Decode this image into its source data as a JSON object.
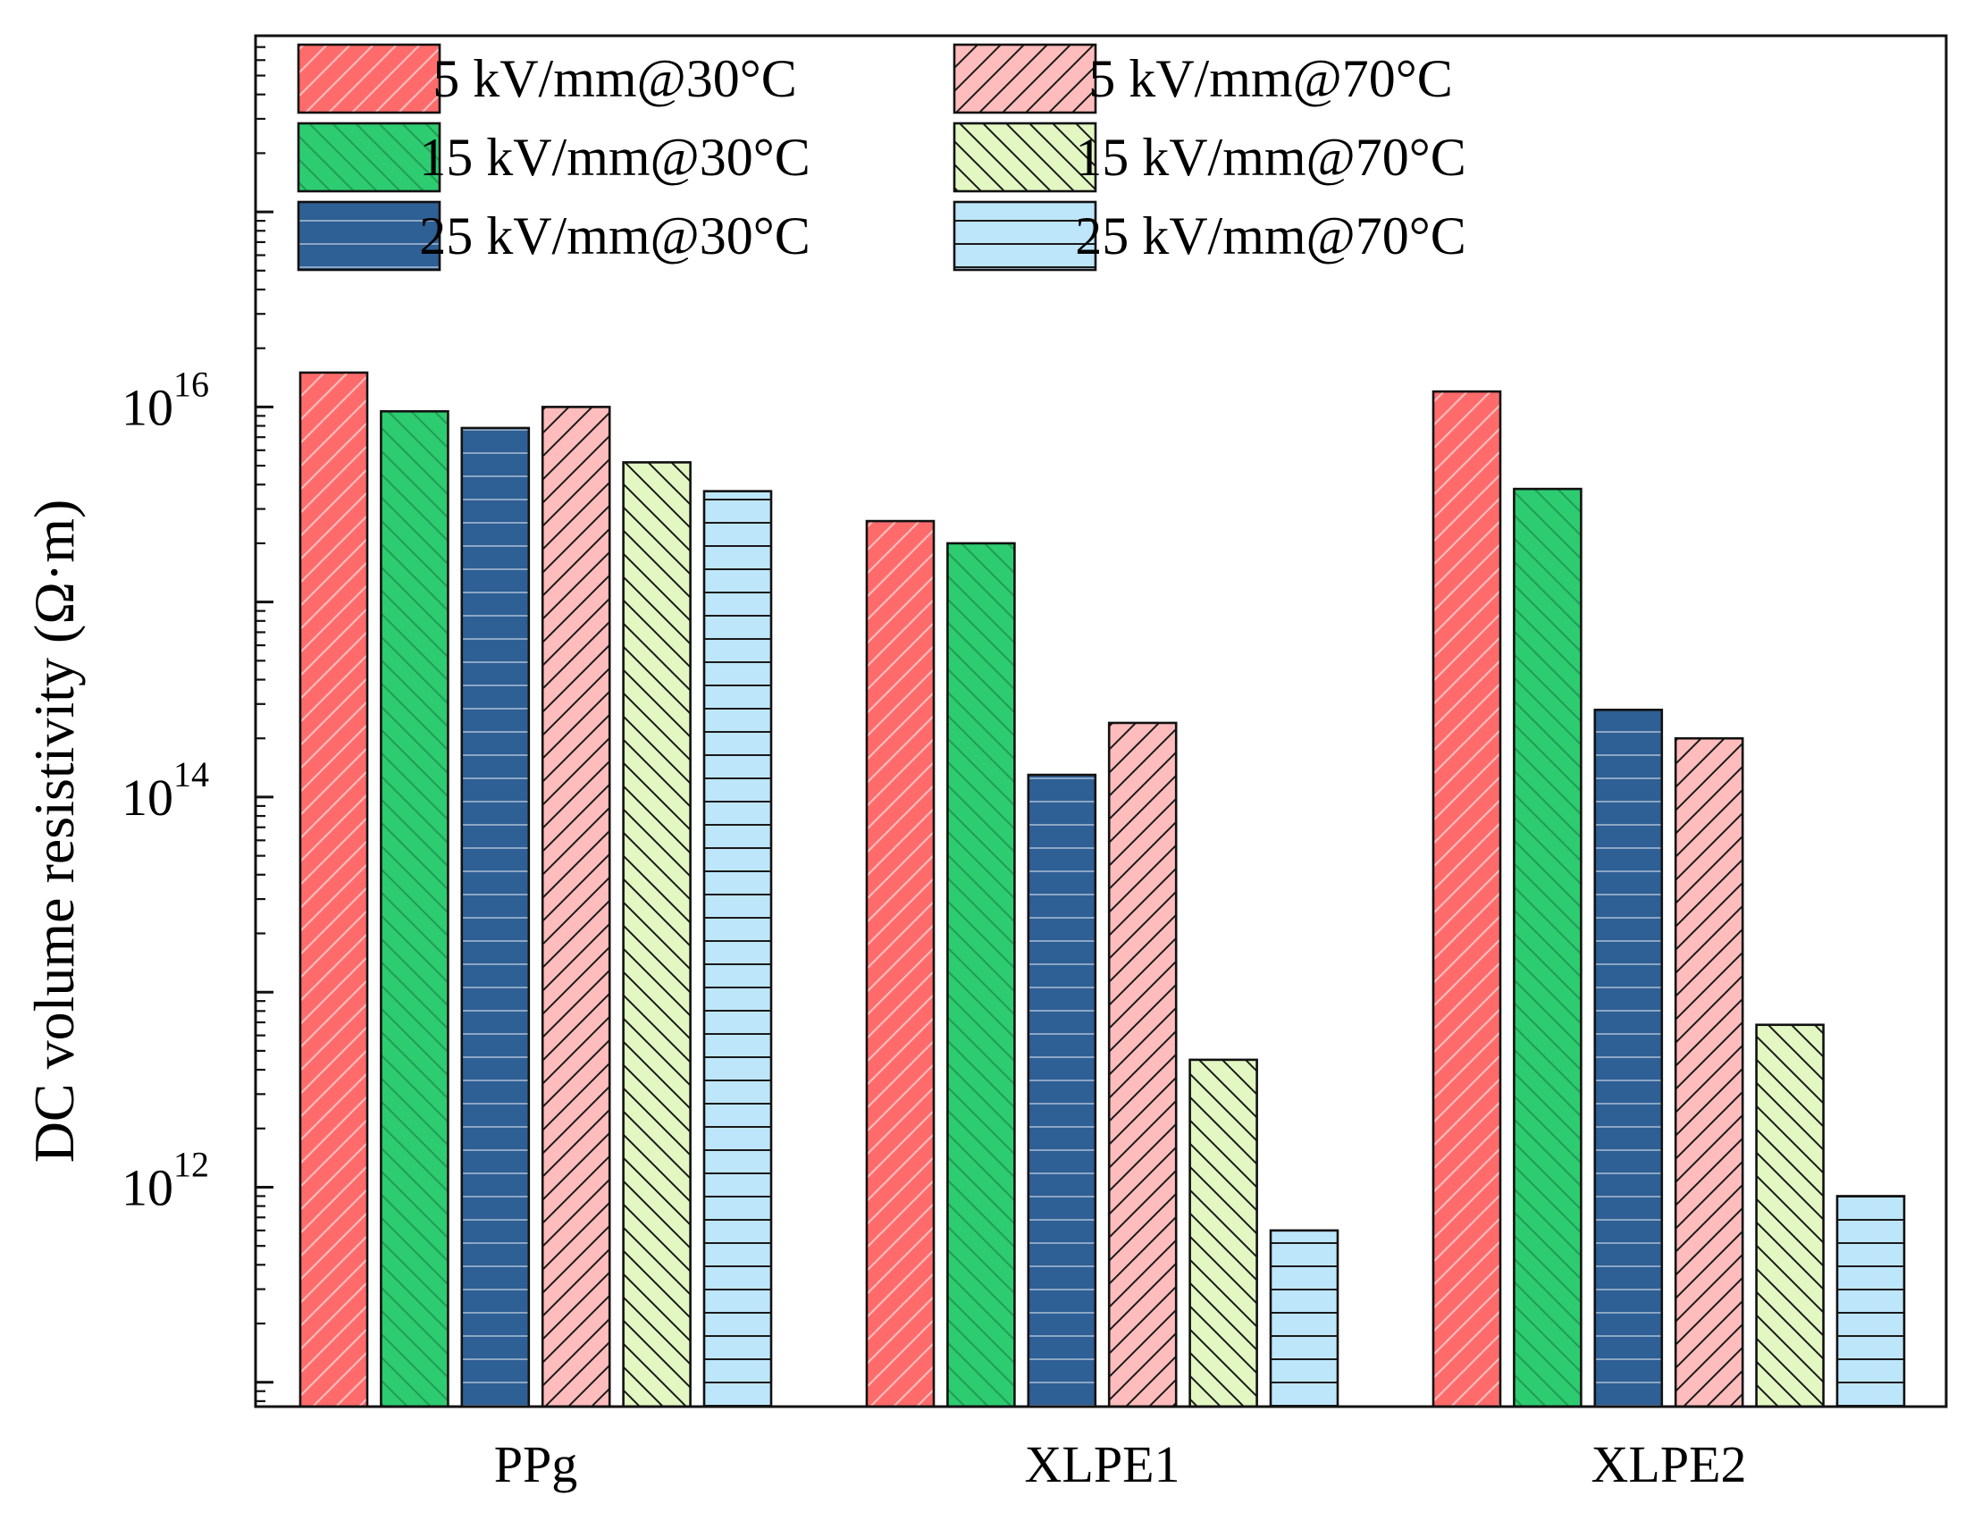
{
  "chart_data": {
    "type": "bar",
    "scale": "log",
    "title": "",
    "xlabel": "",
    "ylabel": "DC volume resistivity (Ω·m)",
    "ylim": [
      75000000000.0,
      8e+17
    ],
    "yticks": [
      {
        "value": 1000000000000.0,
        "base": "10",
        "exp": "12"
      },
      {
        "value": 100000000000000.0,
        "base": "10",
        "exp": "14"
      },
      {
        "value": 1e+16,
        "base": "10",
        "exp": "16"
      }
    ],
    "categories": [
      "PPg",
      "XLPE1",
      "XLPE2"
    ],
    "series": [
      {
        "name": "5 kV/mm@30°C",
        "color": "#ff6b6b",
        "pattern": "fwd-light",
        "values": [
          1.5e+16,
          2600000000000000.0,
          1.2e+16
        ]
      },
      {
        "name": "15 kV/mm@30°C",
        "color": "#2ecc71",
        "pattern": "back-light",
        "values": [
          9500000000000000.0,
          2000000000000000.0,
          3800000000000000.0
        ]
      },
      {
        "name": "25 kV/mm@30°C",
        "color": "#2e5f95",
        "pattern": "horiz-light",
        "values": [
          7800000000000000.0,
          130000000000000.0,
          280000000000000.0
        ]
      },
      {
        "name": "5 kV/mm@70°C",
        "color": "#ffbcbc",
        "pattern": "fwd-dark",
        "values": [
          1e+16,
          240000000000000.0,
          200000000000000.0
        ]
      },
      {
        "name": "15 kV/mm@70°C",
        "color": "#e2f7c2",
        "pattern": "back-dark",
        "values": [
          5200000000000000.0,
          4500000000000.0,
          6800000000000.0
        ]
      },
      {
        "name": "25 kV/mm@70°C",
        "color": "#bde6fb",
        "pattern": "horiz-dark",
        "values": [
          3700000000000000.0,
          600000000000.0,
          900000000000.0
        ]
      }
    ],
    "legend_position": "top-left",
    "grid": false
  }
}
